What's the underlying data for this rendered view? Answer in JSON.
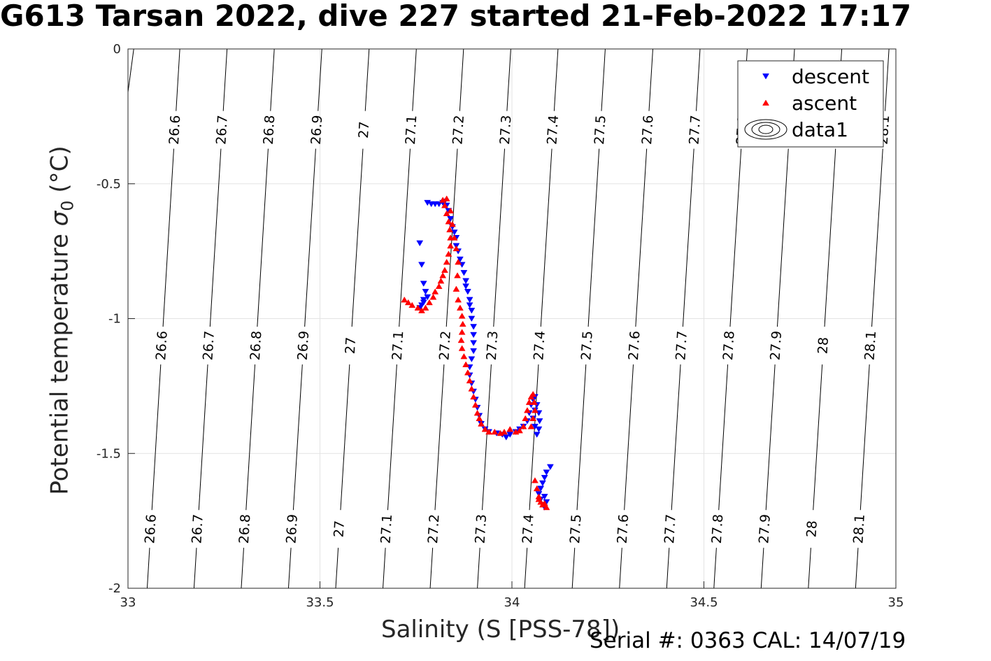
{
  "header": {
    "title": "G613 Tarsan 2022, dive 227 started 21-Feb-2022 17:17"
  },
  "footer": {
    "serial": "Serial #: 0363  CAL: 14/07/19"
  },
  "chart_data": {
    "type": "scatter",
    "title": "G613 Tarsan 2022, dive 227 started 21-Feb-2022 17:17",
    "xlabel": "Salinity (S [PSS-78])",
    "ylabel_main": "Potential temperature ",
    "ylabel_symbol": "σ",
    "ylabel_sub": "0",
    "ylabel_unit": " (°C)",
    "xlim": [
      33,
      35
    ],
    "ylim": [
      -2,
      0
    ],
    "xticks": [
      33,
      33.5,
      34,
      34.5,
      35
    ],
    "xtick_labels": [
      "33",
      "33.5",
      "34",
      "34.5",
      "35"
    ],
    "yticks": [
      0,
      -0.5,
      -1,
      -1.5,
      -2
    ],
    "ytick_labels": [
      "0",
      "-0.5",
      "-1",
      "-1.5",
      "-2"
    ],
    "grid": true,
    "legend_position": "top-right",
    "legend": [
      {
        "label": "descent",
        "marker": "triangle-down",
        "color": "#0000ff"
      },
      {
        "label": "ascent",
        "marker": "triangle-up",
        "color": "#ff0000"
      },
      {
        "label": "data1",
        "marker": "contour",
        "color": "#000000"
      }
    ],
    "contours": {
      "levels": [
        26.6,
        26.7,
        26.8,
        26.9,
        27,
        27.1,
        27.2,
        27.3,
        27.4,
        27.5,
        27.6,
        27.7,
        27.8,
        27.9,
        28,
        28.1
      ],
      "labels": [
        "26.6",
        "26.7",
        "26.8",
        "26.9",
        "27",
        "27.1",
        "27.2",
        "27.3",
        "27.4",
        "27.5",
        "27.6",
        "27.7",
        "27.8",
        "27.9",
        "28",
        "28.1"
      ],
      "line_points": [
        {
          "label": "26.6",
          "top_s": 33.135,
          "bottom_s": 33.05
        },
        {
          "label": "26.7",
          "top_s": 33.258,
          "bottom_s": 33.172
        },
        {
          "label": "26.8",
          "top_s": 33.381,
          "bottom_s": 33.295
        },
        {
          "label": "26.9",
          "top_s": 33.505,
          "bottom_s": 33.418
        },
        {
          "label": "27",
          "top_s": 33.628,
          "bottom_s": 33.541
        },
        {
          "label": "27.1",
          "top_s": 33.751,
          "bottom_s": 33.664
        },
        {
          "label": "27.2",
          "top_s": 33.874,
          "bottom_s": 33.787
        },
        {
          "label": "27.3",
          "top_s": 33.997,
          "bottom_s": 33.91
        },
        {
          "label": "27.4",
          "top_s": 34.12,
          "bottom_s": 34.033
        },
        {
          "label": "27.5",
          "top_s": 34.243,
          "bottom_s": 34.157
        },
        {
          "label": "27.6",
          "top_s": 34.367,
          "bottom_s": 34.28
        },
        {
          "label": "27.7",
          "top_s": 34.49,
          "bottom_s": 34.403
        },
        {
          "label": "27.8",
          "top_s": 34.613,
          "bottom_s": 34.526
        },
        {
          "label": "27.9",
          "top_s": 34.736,
          "bottom_s": 34.649
        },
        {
          "label": "28",
          "top_s": 34.859,
          "bottom_s": 34.772
        },
        {
          "label": "28.1",
          "top_s": 34.982,
          "bottom_s": 34.895
        }
      ],
      "partial_line": {
        "top_s": 33.015,
        "bottom_s": 33.0,
        "bottom_t": -0.16
      }
    },
    "series": [
      {
        "name": "descent",
        "color": "#0000ff",
        "marker": "triangle-down",
        "points": [
          [
            33.78,
            -0.57
          ],
          [
            33.79,
            -0.575
          ],
          [
            33.8,
            -0.575
          ],
          [
            33.81,
            -0.575
          ],
          [
            33.82,
            -0.57
          ],
          [
            33.825,
            -0.565
          ],
          [
            33.83,
            -0.58
          ],
          [
            33.835,
            -0.6
          ],
          [
            33.84,
            -0.63
          ],
          [
            33.845,
            -0.66
          ],
          [
            33.85,
            -0.68
          ],
          [
            33.855,
            -0.7
          ],
          [
            33.855,
            -0.73
          ],
          [
            33.86,
            -0.75
          ],
          [
            33.865,
            -0.78
          ],
          [
            33.87,
            -0.8
          ],
          [
            33.875,
            -0.83
          ],
          [
            33.88,
            -0.86
          ],
          [
            33.88,
            -0.88
          ],
          [
            33.885,
            -0.9
          ],
          [
            33.89,
            -0.93
          ],
          [
            33.89,
            -0.95
          ],
          [
            33.895,
            -0.97
          ],
          [
            33.895,
            -1.0
          ],
          [
            33.9,
            -1.03
          ],
          [
            33.9,
            -1.06
          ],
          [
            33.9,
            -1.09
          ],
          [
            33.9,
            -1.12
          ],
          [
            33.895,
            -1.15
          ],
          [
            33.89,
            -1.18
          ],
          [
            33.89,
            -1.21
          ],
          [
            33.895,
            -1.24
          ],
          [
            33.9,
            -1.27
          ],
          [
            33.905,
            -1.3
          ],
          [
            33.91,
            -1.33
          ],
          [
            33.915,
            -1.36
          ],
          [
            33.92,
            -1.39
          ],
          [
            33.93,
            -1.41
          ],
          [
            33.94,
            -1.42
          ],
          [
            33.96,
            -1.425
          ],
          [
            33.975,
            -1.43
          ],
          [
            33.985,
            -1.44
          ],
          [
            33.995,
            -1.43
          ],
          [
            34.01,
            -1.42
          ],
          [
            34.02,
            -1.41
          ],
          [
            34.03,
            -1.4
          ],
          [
            34.04,
            -1.38
          ],
          [
            34.045,
            -1.35
          ],
          [
            34.05,
            -1.32
          ],
          [
            34.055,
            -1.3
          ],
          [
            34.06,
            -1.29
          ],
          [
            34.065,
            -1.32
          ],
          [
            34.07,
            -1.35
          ],
          [
            34.072,
            -1.38
          ],
          [
            34.07,
            -1.41
          ],
          [
            34.065,
            -1.43
          ],
          [
            34.06,
            -1.4
          ],
          [
            34.055,
            -1.37
          ],
          [
            34.06,
            -1.34
          ],
          [
            33.76,
            -0.72
          ],
          [
            33.765,
            -0.8
          ],
          [
            33.77,
            -0.87
          ],
          [
            33.775,
            -0.9
          ],
          [
            33.77,
            -0.93
          ],
          [
            33.765,
            -0.95
          ],
          [
            33.76,
            -0.96
          ],
          [
            33.77,
            -0.94
          ],
          [
            33.78,
            -0.92
          ],
          [
            34.1,
            -1.55
          ],
          [
            34.09,
            -1.57
          ],
          [
            34.085,
            -1.59
          ],
          [
            34.08,
            -1.61
          ],
          [
            34.075,
            -1.63
          ],
          [
            34.07,
            -1.65
          ],
          [
            34.075,
            -1.67
          ],
          [
            34.08,
            -1.69
          ],
          [
            34.085,
            -1.7
          ],
          [
            34.09,
            -1.68
          ],
          [
            34.085,
            -1.66
          ]
        ]
      },
      {
        "name": "ascent",
        "color": "#ff0000",
        "marker": "triangle-up",
        "points": [
          [
            33.72,
            -0.93
          ],
          [
            33.73,
            -0.94
          ],
          [
            33.74,
            -0.95
          ],
          [
            33.755,
            -0.96
          ],
          [
            33.765,
            -0.97
          ],
          [
            33.775,
            -0.96
          ],
          [
            33.785,
            -0.94
          ],
          [
            33.795,
            -0.92
          ],
          [
            33.8,
            -0.9
          ],
          [
            33.81,
            -0.88
          ],
          [
            33.815,
            -0.86
          ],
          [
            33.82,
            -0.84
          ],
          [
            33.825,
            -0.82
          ],
          [
            33.83,
            -0.79
          ],
          [
            33.835,
            -0.76
          ],
          [
            33.84,
            -0.73
          ],
          [
            33.84,
            -0.7
          ],
          [
            33.838,
            -0.67
          ],
          [
            33.835,
            -0.64
          ],
          [
            33.83,
            -0.61
          ],
          [
            33.825,
            -0.58
          ],
          [
            33.82,
            -0.56
          ],
          [
            33.83,
            -0.555
          ],
          [
            33.84,
            -0.6
          ],
          [
            33.845,
            -0.65
          ],
          [
            33.85,
            -0.7
          ],
          [
            33.855,
            -0.74
          ],
          [
            33.86,
            -0.79
          ],
          [
            33.858,
            -0.84
          ],
          [
            33.855,
            -0.89
          ],
          [
            33.86,
            -0.93
          ],
          [
            33.865,
            -0.96
          ],
          [
            33.87,
            -0.99
          ],
          [
            33.872,
            -1.02
          ],
          [
            33.87,
            -1.05
          ],
          [
            33.868,
            -1.08
          ],
          [
            33.87,
            -1.11
          ],
          [
            33.875,
            -1.14
          ],
          [
            33.88,
            -1.17
          ],
          [
            33.885,
            -1.2
          ],
          [
            33.89,
            -1.23
          ],
          [
            33.895,
            -1.26
          ],
          [
            33.9,
            -1.29
          ],
          [
            33.905,
            -1.32
          ],
          [
            33.91,
            -1.35
          ],
          [
            33.915,
            -1.37
          ],
          [
            33.92,
            -1.39
          ],
          [
            33.93,
            -1.41
          ],
          [
            33.94,
            -1.42
          ],
          [
            33.955,
            -1.42
          ],
          [
            33.97,
            -1.425
          ],
          [
            33.98,
            -1.42
          ],
          [
            33.995,
            -1.41
          ],
          [
            34.01,
            -1.42
          ],
          [
            34.02,
            -1.415
          ],
          [
            34.03,
            -1.4
          ],
          [
            34.035,
            -1.37
          ],
          [
            34.04,
            -1.34
          ],
          [
            34.045,
            -1.31
          ],
          [
            34.05,
            -1.29
          ],
          [
            34.055,
            -1.28
          ],
          [
            34.058,
            -1.31
          ],
          [
            34.06,
            -1.34
          ],
          [
            34.055,
            -1.37
          ],
          [
            34.05,
            -1.4
          ],
          [
            34.06,
            -1.6
          ],
          [
            34.065,
            -1.63
          ],
          [
            34.07,
            -1.66
          ],
          [
            34.075,
            -1.68
          ],
          [
            34.08,
            -1.69
          ],
          [
            34.09,
            -1.7
          ],
          [
            34.085,
            -1.685
          ],
          [
            34.07,
            -1.67
          ]
        ]
      }
    ]
  }
}
